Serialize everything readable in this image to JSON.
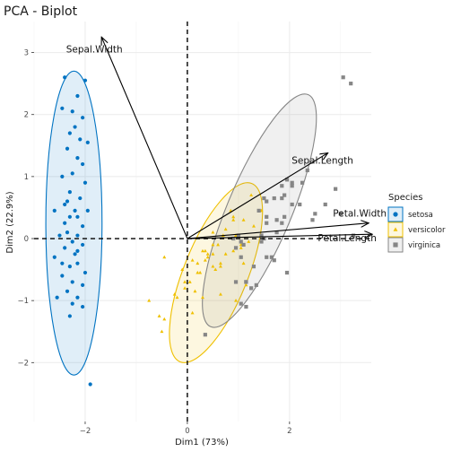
{
  "chart_data": {
    "type": "scatter",
    "title": "PCA - Biplot",
    "xlabel": "Dim1 (73%)",
    "ylabel": "Dim2 (22.9%)",
    "xlim": [
      -3.0,
      3.6
    ],
    "ylim": [
      -2.95,
      3.5
    ],
    "x_ticks": [
      -2,
      0,
      2
    ],
    "y_ticks": [
      -2,
      -1,
      0,
      1,
      2,
      3
    ],
    "grid": true,
    "legend": {
      "title": "Species",
      "position": "right"
    },
    "series": [
      {
        "name": "setosa",
        "color": "#0073C2",
        "marker": "circle",
        "ellipse": {
          "cx": -2.22,
          "cy": 0.25,
          "rx": 0.55,
          "ry": 2.45,
          "angle": 0
        },
        "points": [
          [
            -2.15,
            2.3
          ],
          [
            -2.4,
            2.6
          ],
          [
            -2.0,
            2.55
          ],
          [
            -2.25,
            2.05
          ],
          [
            -2.45,
            2.1
          ],
          [
            -2.2,
            1.8
          ],
          [
            -2.05,
            1.95
          ],
          [
            -2.3,
            1.7
          ],
          [
            -1.95,
            1.55
          ],
          [
            -2.35,
            1.45
          ],
          [
            -2.15,
            1.3
          ],
          [
            -2.05,
            1.2
          ],
          [
            -2.25,
            1.05
          ],
          [
            -2.45,
            1.0
          ],
          [
            -2.0,
            0.9
          ],
          [
            -2.3,
            0.75
          ],
          [
            -2.1,
            0.65
          ],
          [
            -2.4,
            0.55
          ],
          [
            -2.2,
            0.45
          ],
          [
            -2.6,
            0.45
          ],
          [
            -1.95,
            0.45
          ],
          [
            -2.3,
            0.35
          ],
          [
            -2.15,
            0.35
          ],
          [
            -2.4,
            0.25
          ],
          [
            -2.05,
            0.2
          ],
          [
            -2.35,
            0.1
          ],
          [
            -2.15,
            0.05
          ],
          [
            -2.5,
            0.05
          ],
          [
            -2.25,
            -0.05
          ],
          [
            -2.05,
            -0.1
          ],
          [
            -2.4,
            -0.15
          ],
          [
            -2.2,
            -0.25
          ],
          [
            -2.6,
            -0.3
          ],
          [
            -2.15,
            -0.4
          ],
          [
            -2.3,
            -0.45
          ],
          [
            -2.0,
            -0.55
          ],
          [
            -2.45,
            -0.6
          ],
          [
            -2.25,
            -0.7
          ],
          [
            -2.05,
            -0.75
          ],
          [
            -2.35,
            -0.85
          ],
          [
            -2.15,
            -0.95
          ],
          [
            -2.55,
            -0.95
          ],
          [
            -2.25,
            -1.05
          ],
          [
            -2.05,
            -1.1
          ],
          [
            -2.3,
            -1.25
          ],
          [
            -2.15,
            -0.2
          ],
          [
            -2.35,
            0.6
          ],
          [
            -2.1,
            1.6
          ],
          [
            -2.45,
            -0.4
          ],
          [
            -1.9,
            -2.35
          ]
        ]
      },
      {
        "name": "versicolor",
        "color": "#EFC000",
        "marker": "triangle",
        "ellipse": {
          "cx": 0.56,
          "cy": -0.55,
          "rx": 1.6,
          "ry": 0.6,
          "angle": 64
        },
        "points": [
          [
            1.25,
            0.7
          ],
          [
            0.9,
            0.35
          ],
          [
            1.45,
            0.45
          ],
          [
            0.15,
            -0.85
          ],
          [
            1.05,
            -0.1
          ],
          [
            0.65,
            -0.45
          ],
          [
            1.1,
            0.3
          ],
          [
            -0.75,
            -1.0
          ],
          [
            1.05,
            -0.15
          ],
          [
            -0.05,
            -0.7
          ],
          [
            -0.5,
            -1.5
          ],
          [
            0.5,
            -0.1
          ],
          [
            0.3,
            -0.95
          ],
          [
            0.9,
            -0.2
          ],
          [
            -0.45,
            -0.3
          ],
          [
            0.85,
            0.45
          ],
          [
            0.4,
            -0.25
          ],
          [
            0.2,
            -0.4
          ],
          [
            0.95,
            -1.0
          ],
          [
            0.05,
            -0.7
          ],
          [
            0.95,
            0.05
          ],
          [
            0.35,
            -0.2
          ],
          [
            1.15,
            -0.75
          ],
          [
            0.75,
            -0.25
          ],
          [
            0.7,
            0.05
          ],
          [
            0.9,
            0.3
          ],
          [
            1.2,
            -0.05
          ],
          [
            1.3,
            0.2
          ],
          [
            0.65,
            -0.4
          ],
          [
            -0.1,
            -0.5
          ],
          [
            -0.05,
            -0.8
          ],
          [
            -0.2,
            -0.95
          ],
          [
            0.1,
            -0.35
          ],
          [
            1.1,
            -0.4
          ],
          [
            0.5,
            0.1
          ],
          [
            0.35,
            -0.35
          ],
          [
            0.4,
            -0.3
          ],
          [
            0.5,
            -0.25
          ],
          [
            -0.25,
            -0.9
          ],
          [
            0.2,
            -0.55
          ],
          [
            0.55,
            -0.5
          ],
          [
            0.6,
            -0.1
          ],
          [
            0.1,
            -1.2
          ],
          [
            -0.45,
            -1.3
          ],
          [
            0.25,
            -0.55
          ],
          [
            0.3,
            -0.2
          ],
          [
            0.65,
            -0.9
          ],
          [
            0.75,
            0.15
          ],
          [
            -0.55,
            -1.25
          ],
          [
            0.5,
            -0.45
          ]
        ]
      },
      {
        "name": "virginica",
        "color": "#868686",
        "marker": "square",
        "ellipse": {
          "cx": 1.41,
          "cy": 0.45,
          "rx": 2.1,
          "ry": 0.6,
          "angle": 63
        },
        "points": [
          [
            1.85,
            0.85
          ],
          [
            1.15,
            -0.7
          ],
          [
            2.2,
            0.55
          ],
          [
            1.45,
            -0.05
          ],
          [
            1.75,
            0.1
          ],
          [
            2.9,
            0.8
          ],
          [
            0.35,
            -1.55
          ],
          [
            2.45,
            0.3
          ],
          [
            1.95,
            -0.55
          ],
          [
            2.35,
            1.1
          ],
          [
            1.4,
            0.45
          ],
          [
            1.55,
            -0.3
          ],
          [
            1.85,
            0.25
          ],
          [
            1.15,
            -1.1
          ],
          [
            1.35,
            -0.75
          ],
          [
            1.55,
            0.35
          ],
          [
            1.5,
            0.0
          ],
          [
            3.05,
            2.6
          ],
          [
            3.25,
            0.05
          ],
          [
            1.05,
            -1.05
          ],
          [
            2.05,
            0.9
          ],
          [
            0.95,
            -0.7
          ],
          [
            3.0,
            0.4
          ],
          [
            1.1,
            -0.1
          ],
          [
            1.9,
            0.7
          ],
          [
            2.25,
            0.9
          ],
          [
            0.95,
            -0.15
          ],
          [
            1.0,
            0.05
          ],
          [
            1.65,
            -0.3
          ],
          [
            2.05,
            0.55
          ],
          [
            2.5,
            0.4
          ],
          [
            3.2,
            2.5
          ],
          [
            1.7,
            -0.35
          ],
          [
            1.05,
            -0.3
          ],
          [
            1.25,
            -0.8
          ],
          [
            2.7,
            0.55
          ],
          [
            1.55,
            0.6
          ],
          [
            1.45,
            0.05
          ],
          [
            0.9,
            0.0
          ],
          [
            1.85,
            0.65
          ],
          [
            1.9,
            0.35
          ],
          [
            1.7,
            0.65
          ],
          [
            1.15,
            -0.7
          ],
          [
            2.05,
            0.85
          ],
          [
            1.95,
            0.95
          ],
          [
            1.75,
            0.3
          ],
          [
            1.3,
            -0.45
          ],
          [
            1.55,
            0.25
          ],
          [
            1.5,
            0.65
          ],
          [
            1.05,
            -0.05
          ]
        ]
      }
    ],
    "variables": [
      {
        "name": "Sepal.Width",
        "x": -1.68,
        "y": 3.25
      },
      {
        "name": "Sepal.Length",
        "x": 2.75,
        "y": 1.38
      },
      {
        "name": "Petal.Width",
        "x": 3.55,
        "y": 0.25
      },
      {
        "name": "Petal.Length",
        "x": 3.62,
        "y": 0.07
      }
    ]
  }
}
